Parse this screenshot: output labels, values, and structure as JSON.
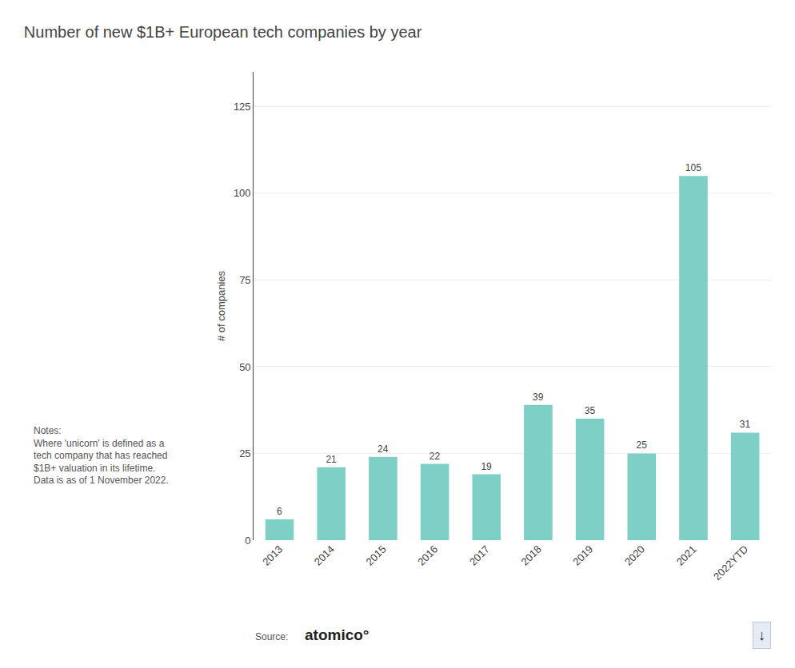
{
  "chart_data": {
    "type": "bar",
    "title": "Number of new $1B+ European tech companies by year",
    "categories": [
      "2013",
      "2014",
      "2015",
      "2016",
      "2017",
      "2018",
      "2019",
      "2020",
      "2021",
      "2022YTD"
    ],
    "values": [
      6,
      21,
      24,
      22,
      19,
      39,
      35,
      25,
      105,
      31
    ],
    "color": "#7ECFC5",
    "ylabel": "# of companies",
    "ylim": [
      0,
      135
    ],
    "yticks": [
      0,
      25,
      50,
      75,
      100,
      125
    ],
    "grid": true,
    "data_labels": true,
    "annotations": [
      "Notes:\nWhere 'unicorn' is defined as a\ntech company that has reached\n$1B+ valuation in its lifetime.\nData is as of 1 November 2022.",
      "Source:",
      "atomico°",
      "↓"
    ]
  }
}
